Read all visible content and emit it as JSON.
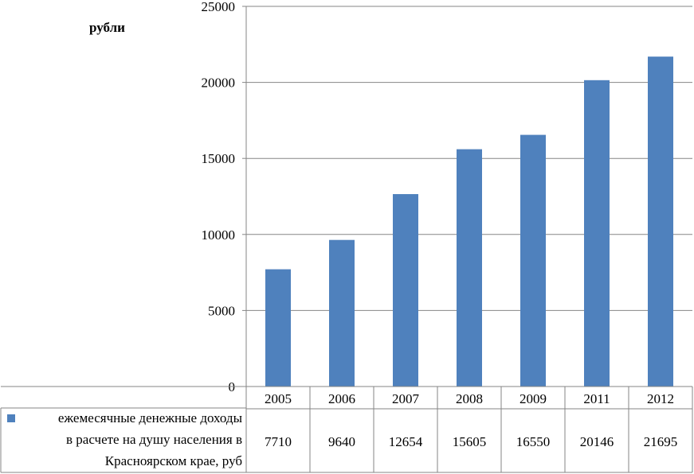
{
  "chart_data": {
    "type": "bar",
    "ylabel": "рубли",
    "ylim": [
      0,
      25000
    ],
    "yticks": [
      0,
      5000,
      10000,
      15000,
      20000,
      25000
    ],
    "grid": true,
    "categories": [
      "2005",
      "2006",
      "2007",
      "2008",
      "2009",
      "2011",
      "2012"
    ],
    "series": [
      {
        "name": "ежемесячные денежные доходы в расчете на душу населения в Красноярском крае, руб",
        "name_lines": [
          "ежемесячные денежные доходы",
          "в расчете на душу населения в",
          "Красноярском крае, руб"
        ],
        "values": [
          7710,
          9640,
          12654,
          15605,
          16550,
          20146,
          21695
        ],
        "color": "#4f81bd"
      }
    ],
    "data_table": true,
    "legend": "data-table"
  }
}
